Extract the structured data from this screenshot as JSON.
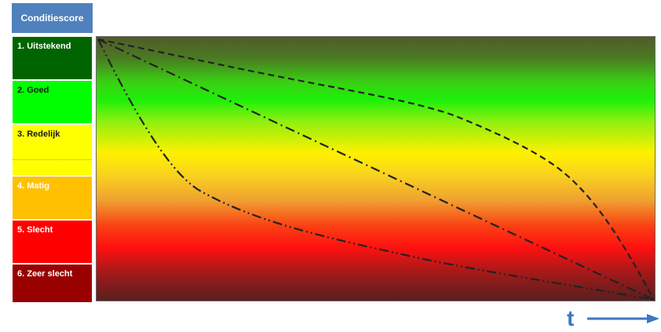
{
  "header": {
    "title": "Conditiescore"
  },
  "levels": [
    {
      "label": "1. Uitstekend",
      "bg": "#006400",
      "color": "#ffffff"
    },
    {
      "label": "2. Goed",
      "bg": "#00ff00",
      "color": "#1a1a1a"
    },
    {
      "label": "3. Redelijk",
      "bg": "#ffff00",
      "color": "#1a1a1a"
    },
    {
      "label": "4. Matig",
      "bg": "#ffc000",
      "color": "#ffffff"
    },
    {
      "label": "5. Slecht",
      "bg": "#ff0000",
      "color": "#ffffff"
    },
    {
      "label": "6. Zeer slecht",
      "bg": "#990000",
      "color": "#ffffff"
    }
  ],
  "axis": {
    "time_label": "t",
    "accent": "#3d78c2"
  },
  "curves": [
    {
      "style": "dashed"
    },
    {
      "style": "dash-dot"
    },
    {
      "style": "dash-dot-dot"
    }
  ]
}
